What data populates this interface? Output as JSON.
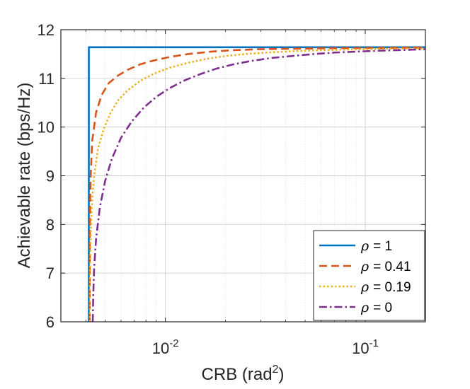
{
  "chart_data": {
    "type": "line",
    "title": "",
    "xlabel": "CRB (rad",
    "xlabel_sup": "2",
    "xlabel_close": ")",
    "ylabel": "Achievable rate (bps/Hz)",
    "xscale": "log",
    "xlim": [
      0.003,
      0.2
    ],
    "ylim": [
      6,
      12
    ],
    "grid": true,
    "legend_position": "bottom-right",
    "y_ticks": [
      {
        "value": 6,
        "label": "6"
      },
      {
        "value": 7,
        "label": "7"
      },
      {
        "value": 8,
        "label": "8"
      },
      {
        "value": 9,
        "label": "9"
      },
      {
        "value": 10,
        "label": "10"
      },
      {
        "value": 11,
        "label": "11"
      },
      {
        "value": 12,
        "label": "12"
      }
    ],
    "x_ticks": [
      {
        "value": 0.01,
        "base": "10",
        "exp": "-2"
      },
      {
        "value": 0.1,
        "base": "10",
        "exp": "-1"
      }
    ],
    "series": [
      {
        "name": "ρ = 1",
        "rho_symbol": "ρ",
        "rho_value": "= 1",
        "color": "#0072BD",
        "dash": "solid",
        "x": [
          0.00414,
          0.00414,
          0.00416,
          0.01,
          0.05,
          0.1,
          0.2
        ],
        "y": [
          6.0,
          11.64,
          11.64,
          11.64,
          11.64,
          11.64,
          11.64
        ]
      },
      {
        "name": "ρ = 0.41",
        "rho_symbol": "ρ",
        "rho_value": "= 0.41",
        "color": "#D95319",
        "dash": "dashed",
        "x": [
          0.00418,
          0.00419,
          0.0042,
          0.00423,
          0.0043,
          0.0045,
          0.0048,
          0.0052,
          0.0058,
          0.0065,
          0.0075,
          0.0088,
          0.0105,
          0.013,
          0.017,
          0.022,
          0.03,
          0.045,
          0.07,
          0.11,
          0.16,
          0.2
        ],
        "y": [
          6.0,
          7.6,
          8.4,
          9.0,
          9.7,
          10.3,
          10.66,
          10.9,
          11.06,
          11.18,
          11.29,
          11.37,
          11.44,
          11.5,
          11.55,
          11.58,
          11.6,
          11.61,
          11.62,
          11.625,
          11.63,
          11.63
        ]
      },
      {
        "name": "ρ = 0.19",
        "rho_symbol": "ρ",
        "rho_value": "= 0.19",
        "color": "#EDB120",
        "dash": "dotted",
        "x": [
          0.00419,
          0.0042,
          0.00423,
          0.0043,
          0.0044,
          0.0046,
          0.0049,
          0.0053,
          0.0058,
          0.0065,
          0.0075,
          0.0088,
          0.0105,
          0.013,
          0.016,
          0.02,
          0.025,
          0.032,
          0.042,
          0.055,
          0.075,
          0.1,
          0.14,
          0.2
        ],
        "y": [
          6.0,
          7.0,
          7.8,
          8.5,
          9.0,
          9.55,
          9.95,
          10.28,
          10.55,
          10.76,
          10.95,
          11.1,
          11.22,
          11.32,
          11.4,
          11.46,
          11.5,
          11.53,
          11.555,
          11.575,
          11.59,
          11.6,
          11.61,
          11.615
        ]
      },
      {
        "name": "ρ = 0",
        "rho_symbol": "ρ",
        "rho_value": "= 0",
        "color": "#7E2F8E",
        "dash": "dashdot",
        "x": [
          0.00433,
          0.00436,
          0.0044,
          0.0045,
          0.0047,
          0.005,
          0.0054,
          0.006,
          0.0068,
          0.0078,
          0.009,
          0.0105,
          0.0125,
          0.015,
          0.018,
          0.022,
          0.027,
          0.034,
          0.043,
          0.055,
          0.07,
          0.09,
          0.12,
          0.16,
          0.2
        ],
        "y": [
          6.0,
          6.6,
          7.1,
          7.7,
          8.35,
          8.9,
          9.35,
          9.78,
          10.12,
          10.4,
          10.62,
          10.8,
          10.96,
          11.09,
          11.2,
          11.29,
          11.36,
          11.42,
          11.46,
          11.5,
          11.53,
          11.55,
          11.57,
          11.585,
          11.6
        ]
      }
    ]
  }
}
